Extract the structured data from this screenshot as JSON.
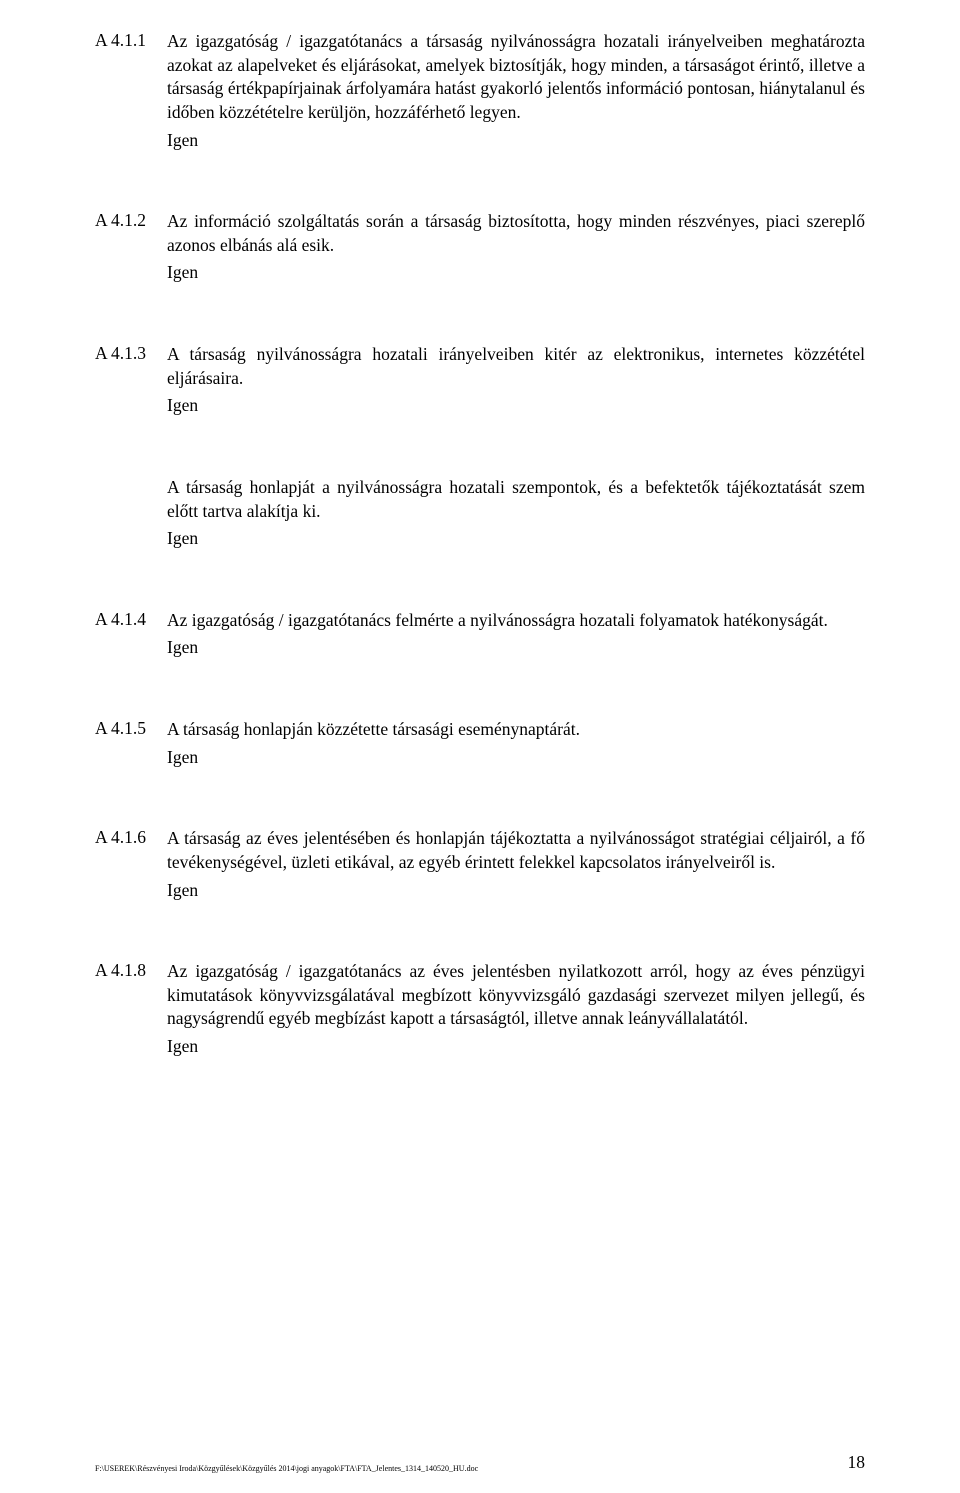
{
  "sections": [
    {
      "label": "A 4.1.1",
      "text": "Az igazgatóság / igazgatótanács a társaság nyilvánosságra hozatali irányelveiben meghatározta azokat az alapelveket és eljárásokat, amelyek biztosítják, hogy minden, a társaságot érintő, illetve a társaság értékpapírjainak árfolyamára hatást gyakorló jelentős információ pontosan, hiánytalanul és időben közzétételre kerüljön, hozzáférhető legyen.",
      "answer": "Igen"
    },
    {
      "label": "A 4.1.2",
      "text": "Az információ szolgáltatás során a társaság biztosította, hogy minden részvényes, piaci szereplő azonos elbánás alá esik.",
      "answer": "Igen"
    },
    {
      "label": "A 4.1.3",
      "text": "A társaság nyilvánosságra hozatali irányelveiben kitér az elektronikus, internetes közzététel eljárásaira.",
      "answer": "Igen"
    },
    {
      "label": "",
      "text": "A társaság honlapját a nyilvánosságra hozatali szempontok, és a befektetők tájékoztatását szem előtt tartva alakítja ki.",
      "answer": "Igen"
    },
    {
      "label": "A 4.1.4",
      "text": "Az igazgatóság / igazgatótanács felmérte a nyilvánosságra hozatali folyamatok hatékonyságát.",
      "answer": "Igen"
    },
    {
      "label": "A 4.1.5",
      "text": "A társaság honlapján közzétette társasági eseménynaptárát.",
      "answer": "Igen"
    },
    {
      "label": "A 4.1.6",
      "text": "A társaság az éves jelentésében és honlapján tájékoztatta a nyilvánosságot stratégiai céljairól, a fő tevékenységével, üzleti etikával, az egyéb érintett felekkel kapcsolatos irányelveiről is.",
      "answer": "Igen"
    },
    {
      "label": "A 4.1.8",
      "text": "Az igazgatóság / igazgatótanács az éves jelentésben nyilatkozott arról, hogy az éves pénzügyi kimutatások könyvvizsgálatával megbízott könyvvizsgáló gazdasági szervezet milyen jellegű, és nagyságrendű egyéb megbízást kapott a társaságtól, illetve annak leányvállalatától.",
      "answer": "Igen"
    }
  ],
  "footer": {
    "path": "F:\\USEREK\\Részvényesi Iroda\\Közgyűlések\\Közgyűlés 2014\\jogi anyagok\\FTA\\FTA_Jelentes_1314_140520_HU.doc",
    "page": "18"
  }
}
